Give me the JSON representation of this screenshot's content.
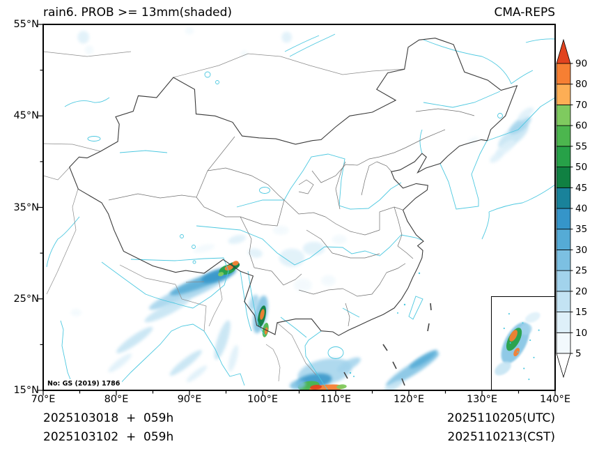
{
  "header": {
    "title": "rain6. PROB >= 13mm(shaded)",
    "model": "CMA-REPS"
  },
  "map": {
    "gs_label": "No: GS (2019) 1786"
  },
  "axes": {
    "x_ticks": [
      "70°E",
      "80°E",
      "90°E",
      "100°E",
      "110°E",
      "120°E",
      "130°E",
      "140°E"
    ],
    "y_ticks": [
      "55°N",
      "45°N",
      "35°N",
      "25°N",
      "15°N"
    ]
  },
  "footer": {
    "init_utc": "2025103018  +  059h",
    "init_cst": "2025103102  +  059h",
    "valid_utc": "2025110205(UTC)",
    "valid_cst": "2025110213(CST)"
  },
  "chart_data": {
    "type": "heatmap",
    "title": "rain6. PROB >= 13mm(shaded)",
    "model": "CMA-REPS",
    "value_label": "probability (%) of 6h rain >= 13mm",
    "lon_range": [
      70,
      140
    ],
    "lat_range": [
      15,
      55
    ],
    "colorbar": {
      "levels": [
        5,
        10,
        15,
        20,
        25,
        30,
        35,
        40,
        45,
        50,
        55,
        60,
        70,
        80,
        90
      ],
      "colors": [
        "#ffffff",
        "#f2f9fd",
        "#def0f9",
        "#c3e3f3",
        "#a2d3ec",
        "#7cc0e2",
        "#55abd6",
        "#3595c9",
        "#19829a",
        "#108042",
        "#27a148",
        "#4cb64e",
        "#7fca5f",
        "#fdae55",
        "#f67f33",
        "#e1431f"
      ],
      "extend": "both"
    },
    "features": [
      {
        "lon": 134.3,
        "lat": 42.8,
        "w": 5.0,
        "h": 1.6,
        "rot": -38,
        "level": 15,
        "soft": true
      },
      {
        "lon": 135.2,
        "lat": 44.0,
        "w": 3.6,
        "h": 1.2,
        "rot": -38,
        "level": 20,
        "soft": true
      },
      {
        "lon": 133.2,
        "lat": 41.5,
        "w": 3.2,
        "h": 1.0,
        "rot": -38,
        "level": 10,
        "soft": true
      },
      {
        "lon": 136.0,
        "lat": 45.2,
        "w": 2.6,
        "h": 0.9,
        "rot": -38,
        "level": 10,
        "soft": true
      },
      {
        "lon": 132.0,
        "lat": 40.5,
        "w": 2.2,
        "h": 0.8,
        "rot": -38,
        "level": 10,
        "soft": true
      },
      {
        "lon": 128.8,
        "lat": 42.3,
        "w": 1.6,
        "h": 0.7,
        "rot": -30,
        "level": 8,
        "soft": true
      },
      {
        "lon": 75.5,
        "lat": 53.6,
        "w": 1.6,
        "h": 1.4,
        "rot": 0,
        "level": 12,
        "soft": true
      },
      {
        "lon": 76.3,
        "lat": 52.2,
        "w": 1.2,
        "h": 1.0,
        "rot": 0,
        "level": 8,
        "soft": true
      },
      {
        "lon": 103.3,
        "lat": 53.6,
        "w": 1.4,
        "h": 1.2,
        "rot": 0,
        "level": 12,
        "soft": true
      },
      {
        "lon": 90.0,
        "lat": 54.3,
        "w": 1.2,
        "h": 0.8,
        "rot": 0,
        "level": 8,
        "soft": true
      },
      {
        "lon": 97.5,
        "lat": 51.8,
        "w": 1.0,
        "h": 0.7,
        "rot": 0,
        "level": 8,
        "soft": true
      },
      {
        "lon": 90.0,
        "lat": 25.8,
        "w": 12.0,
        "h": 1.5,
        "rot": -23,
        "level": 20,
        "soft": true
      },
      {
        "lon": 91.5,
        "lat": 26.8,
        "w": 9.0,
        "h": 1.2,
        "rot": -21,
        "level": 30,
        "soft": true
      },
      {
        "lon": 87.0,
        "lat": 23.8,
        "w": 7.0,
        "h": 1.1,
        "rot": -27,
        "level": 15,
        "soft": true
      },
      {
        "lon": 94.0,
        "lat": 27.6,
        "w": 5.0,
        "h": 1.3,
        "rot": -18,
        "level": 35,
        "soft": true
      },
      {
        "lon": 95.2,
        "lat": 28.2,
        "w": 2.4,
        "h": 1.0,
        "rot": -18,
        "level": 50,
        "soft": false
      },
      {
        "lon": 96.0,
        "lat": 28.6,
        "w": 1.8,
        "h": 0.8,
        "rot": -18,
        "level": 45,
        "soft": false
      },
      {
        "lon": 95.4,
        "lat": 28.4,
        "w": 1.2,
        "h": 0.55,
        "rot": -18,
        "level": 85,
        "soft": false
      },
      {
        "lon": 96.3,
        "lat": 28.9,
        "w": 0.9,
        "h": 0.5,
        "rot": -18,
        "level": 85,
        "soft": false
      },
      {
        "lon": 94.3,
        "lat": 27.7,
        "w": 0.8,
        "h": 0.45,
        "rot": -18,
        "level": 65,
        "soft": false
      },
      {
        "lon": 82.5,
        "lat": 20.5,
        "w": 6.0,
        "h": 1.0,
        "rot": -35,
        "level": 15,
        "soft": true
      },
      {
        "lon": 80.5,
        "lat": 18.0,
        "w": 4.0,
        "h": 0.8,
        "rot": -38,
        "level": 10,
        "soft": true
      },
      {
        "lon": 92.0,
        "lat": 30.5,
        "w": 3.0,
        "h": 0.8,
        "rot": -15,
        "level": 8,
        "soft": true
      },
      {
        "lon": 96.5,
        "lat": 31.5,
        "w": 2.5,
        "h": 0.9,
        "rot": -15,
        "level": 12,
        "soft": true
      },
      {
        "lon": 99.0,
        "lat": 30.0,
        "w": 2.0,
        "h": 1.0,
        "rot": 10,
        "level": 12,
        "soft": true
      },
      {
        "lon": 99.7,
        "lat": 23.3,
        "w": 1.8,
        "h": 4.2,
        "rot": 12,
        "level": 25,
        "soft": true
      },
      {
        "lon": 99.9,
        "lat": 23.1,
        "w": 1.0,
        "h": 2.4,
        "rot": 12,
        "level": 45,
        "soft": false
      },
      {
        "lon": 99.95,
        "lat": 23.3,
        "w": 0.55,
        "h": 1.2,
        "rot": 12,
        "level": 85,
        "soft": false
      },
      {
        "lon": 100.4,
        "lat": 21.6,
        "w": 0.8,
        "h": 1.6,
        "rot": 10,
        "level": 55,
        "soft": false
      },
      {
        "lon": 100.5,
        "lat": 21.5,
        "w": 0.4,
        "h": 0.8,
        "rot": 10,
        "level": 85,
        "soft": false
      },
      {
        "lon": 98.8,
        "lat": 24.6,
        "w": 1.2,
        "h": 1.8,
        "rot": 20,
        "level": 20,
        "soft": true
      },
      {
        "lon": 94.5,
        "lat": 20.5,
        "w": 1.4,
        "h": 4.5,
        "rot": 18,
        "level": 15,
        "soft": true
      },
      {
        "lon": 96.0,
        "lat": 18.5,
        "w": 1.0,
        "h": 3.0,
        "rot": 15,
        "level": 10,
        "soft": true
      },
      {
        "lon": 89.5,
        "lat": 18.0,
        "w": 5.5,
        "h": 0.9,
        "rot": -38,
        "level": 15,
        "soft": true
      },
      {
        "lon": 91.0,
        "lat": 16.8,
        "w": 3.5,
        "h": 0.7,
        "rot": -38,
        "level": 10,
        "soft": true
      },
      {
        "lon": 104.0,
        "lat": 29.5,
        "w": 3.5,
        "h": 2.0,
        "rot": 0,
        "level": 12,
        "soft": true
      },
      {
        "lon": 107.0,
        "lat": 30.5,
        "w": 3.0,
        "h": 1.5,
        "rot": 0,
        "level": 12,
        "soft": true
      },
      {
        "lon": 105.5,
        "lat": 26.5,
        "w": 2.5,
        "h": 1.5,
        "rot": 0,
        "level": 8,
        "soft": true
      },
      {
        "lon": 109.0,
        "lat": 27.0,
        "w": 2.0,
        "h": 1.2,
        "rot": 0,
        "level": 8,
        "soft": true
      },
      {
        "lon": 102.5,
        "lat": 32.5,
        "w": 2.2,
        "h": 1.0,
        "rot": 0,
        "level": 8,
        "soft": true
      },
      {
        "lon": 110.5,
        "lat": 31.5,
        "w": 2.0,
        "h": 1.0,
        "rot": 0,
        "level": 8,
        "soft": true
      },
      {
        "lon": 108.5,
        "lat": 17.0,
        "w": 7.5,
        "h": 2.8,
        "rot": -12,
        "level": 20,
        "soft": true
      },
      {
        "lon": 107.0,
        "lat": 16.0,
        "w": 5.0,
        "h": 1.6,
        "rot": -10,
        "level": 35,
        "soft": true
      },
      {
        "lon": 106.3,
        "lat": 15.5,
        "w": 3.0,
        "h": 1.0,
        "rot": -8,
        "level": 55,
        "soft": false
      },
      {
        "lon": 108.8,
        "lat": 15.25,
        "w": 4.8,
        "h": 0.75,
        "rot": -4,
        "level": 85,
        "soft": false
      },
      {
        "lon": 107.3,
        "lat": 15.35,
        "w": 1.6,
        "h": 0.5,
        "rot": -5,
        "level": 95,
        "soft": false
      },
      {
        "lon": 110.8,
        "lat": 15.4,
        "w": 1.4,
        "h": 0.5,
        "rot": -5,
        "level": 65,
        "soft": false
      },
      {
        "lon": 111.8,
        "lat": 17.8,
        "w": 3.6,
        "h": 1.0,
        "rot": -28,
        "level": 20,
        "soft": true
      },
      {
        "lon": 104.8,
        "lat": 15.6,
        "w": 2.2,
        "h": 1.0,
        "rot": -10,
        "level": 25,
        "soft": true
      },
      {
        "lon": 120.5,
        "lat": 17.3,
        "w": 8.5,
        "h": 1.2,
        "rot": -32,
        "level": 25,
        "soft": true
      },
      {
        "lon": 122.0,
        "lat": 18.4,
        "w": 4.5,
        "h": 0.8,
        "rot": -32,
        "level": 30,
        "soft": true
      },
      {
        "lon": 117.8,
        "lat": 15.4,
        "w": 3.0,
        "h": 0.8,
        "rot": -32,
        "level": 15,
        "soft": true
      },
      {
        "lon": 74.5,
        "lat": 23.5,
        "w": 1.5,
        "h": 0.8,
        "rot": 0,
        "level": 8,
        "soft": true
      }
    ],
    "inset": {
      "region": "South China Sea",
      "features": [
        {
          "x": 0.38,
          "y": 0.5,
          "w": 0.34,
          "h": 0.5,
          "rot": 28,
          "level": 25,
          "soft": true
        },
        {
          "x": 0.55,
          "y": 0.35,
          "w": 0.2,
          "h": 0.12,
          "rot": -30,
          "level": 20,
          "soft": true
        },
        {
          "x": 0.36,
          "y": 0.46,
          "w": 0.18,
          "h": 0.28,
          "rot": 28,
          "level": 50,
          "soft": false
        },
        {
          "x": 0.35,
          "y": 0.42,
          "w": 0.1,
          "h": 0.14,
          "rot": 28,
          "level": 85,
          "soft": false
        },
        {
          "x": 0.4,
          "y": 0.6,
          "w": 0.08,
          "h": 0.1,
          "rot": 28,
          "level": 85,
          "soft": false
        },
        {
          "x": 0.18,
          "y": 0.78,
          "w": 0.3,
          "h": 0.12,
          "rot": -35,
          "level": 15,
          "soft": true
        },
        {
          "x": 0.66,
          "y": 0.22,
          "w": 0.26,
          "h": 0.1,
          "rot": -25,
          "level": 10,
          "soft": true
        }
      ],
      "islands": [
        [
          0.28,
          0.18
        ],
        [
          0.5,
          0.28
        ],
        [
          0.62,
          0.47
        ],
        [
          0.42,
          0.6
        ],
        [
          0.68,
          0.66
        ],
        [
          0.3,
          0.5
        ],
        [
          0.52,
          0.78
        ],
        [
          0.76,
          0.36
        ],
        [
          0.2,
          0.34
        ],
        [
          0.6,
          0.9
        ]
      ]
    }
  }
}
